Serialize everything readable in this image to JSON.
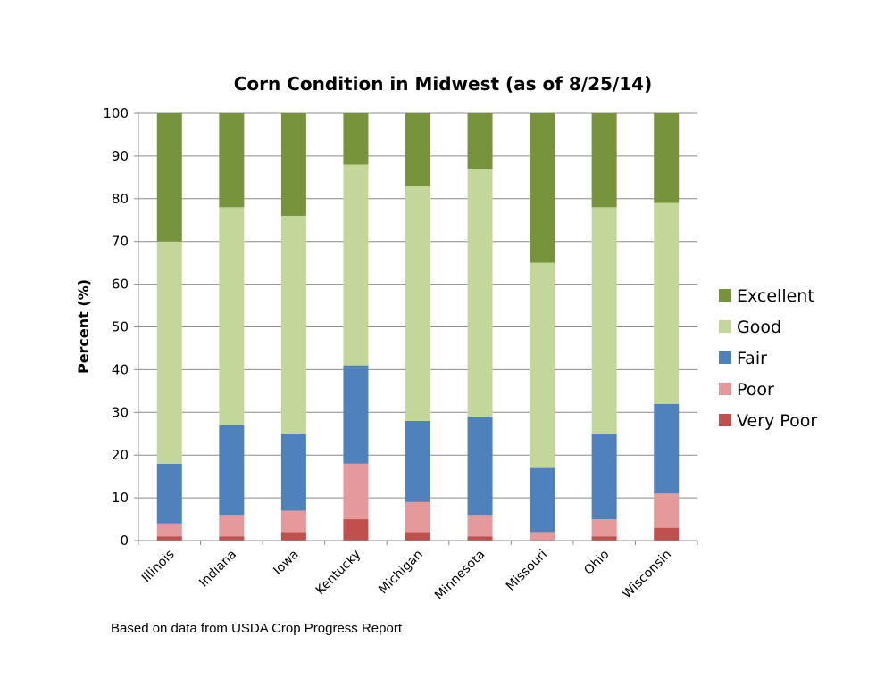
{
  "chart_data": {
    "type": "bar",
    "stacked": true,
    "title": "Corn Condition in Midwest (as of 8/25/14)",
    "ylabel": "Percent (%)",
    "xlabel": "",
    "ylim": [
      0,
      100
    ],
    "yticks": [
      0,
      10,
      20,
      30,
      40,
      50,
      60,
      70,
      80,
      90,
      100
    ],
    "grid": true,
    "legend_position": "right",
    "categories": [
      "Illinois",
      "Indiana",
      "Iowa",
      "Kentucky",
      "Michigan",
      "Minnesota",
      "Missouri",
      "Ohio",
      "Wisconsin"
    ],
    "series": [
      {
        "name": "Very Poor",
        "color": "#c0504d",
        "values": [
          1,
          1,
          2,
          5,
          2,
          1,
          0,
          1,
          3
        ]
      },
      {
        "name": "Poor",
        "color": "#e6999a",
        "values": [
          3,
          5,
          5,
          13,
          7,
          5,
          2,
          4,
          8
        ]
      },
      {
        "name": "Fair",
        "color": "#4f81bd",
        "values": [
          14,
          21,
          18,
          23,
          19,
          23,
          15,
          20,
          21
        ]
      },
      {
        "name": "Good",
        "color": "#c4d79b",
        "values": [
          52,
          51,
          51,
          47,
          55,
          58,
          48,
          53,
          47
        ]
      },
      {
        "name": "Excellent",
        "color": "#77933c",
        "values": [
          30,
          22,
          24,
          12,
          17,
          13,
          35,
          22,
          21
        ]
      }
    ],
    "note": "Based on data from USDA Crop Progress Report"
  }
}
